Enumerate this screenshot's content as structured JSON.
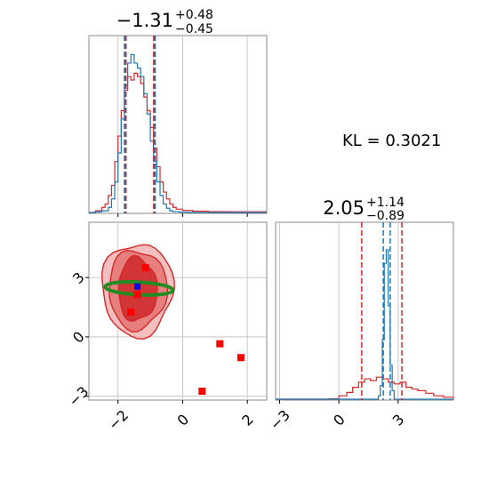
{
  "chart_data": {
    "type": "corner",
    "kl_annotation": "KL = 0.3021",
    "parameters": [
      {
        "title": "−1.31",
        "upper_err": "+0.48",
        "lower_err": "−0.45",
        "axis_range": [
          -2.9,
          2.6
        ],
        "ticks": [
          -2,
          0,
          2
        ],
        "tick_labels": [
          "−2",
          "0",
          "2"
        ],
        "quantile_lines_red": [
          -1.76,
          -0.89
        ],
        "quantile_lines_blue": [
          -1.8,
          -0.85
        ]
      },
      {
        "title": "2.05",
        "upper_err": "+1.14",
        "lower_err": "−0.89",
        "axis_range": [
          -3.2,
          5.8
        ],
        "ticks": [
          -3,
          0,
          3
        ],
        "tick_labels": [
          "−3",
          "0",
          "3"
        ],
        "quantile_lines_red": [
          1.16,
          3.19
        ],
        "quantile_lines_blue": [
          2.25,
          2.6
        ]
      }
    ],
    "histogram_1d_param1": {
      "blue": [
        [
          -2.9,
          0
        ],
        [
          -2.7,
          0.004
        ],
        [
          -2.5,
          0.01
        ],
        [
          -2.3,
          0.03
        ],
        [
          -2.2,
          0.08
        ],
        [
          -2.1,
          0.18
        ],
        [
          -2.0,
          0.35
        ],
        [
          -1.9,
          0.55
        ],
        [
          -1.8,
          0.75
        ],
        [
          -1.7,
          0.88
        ],
        [
          -1.6,
          0.93
        ],
        [
          -1.5,
          0.88
        ],
        [
          -1.4,
          0.85
        ],
        [
          -1.3,
          0.8
        ],
        [
          -1.2,
          0.7
        ],
        [
          -1.1,
          0.58
        ],
        [
          -1.0,
          0.42
        ],
        [
          -0.9,
          0.3
        ],
        [
          -0.8,
          0.18
        ],
        [
          -0.7,
          0.1
        ],
        [
          -0.6,
          0.05
        ],
        [
          -0.5,
          0.025
        ],
        [
          -0.4,
          0.01
        ],
        [
          -0.3,
          0.005
        ],
        [
          -0.1,
          0.002
        ],
        [
          0.2,
          0
        ],
        [
          2.6,
          0
        ]
      ],
      "red": [
        [
          -2.9,
          0
        ],
        [
          -2.7,
          0.01
        ],
        [
          -2.5,
          0.03
        ],
        [
          -2.4,
          0.05
        ],
        [
          -2.3,
          0.1
        ],
        [
          -2.2,
          0.16
        ],
        [
          -2.1,
          0.3
        ],
        [
          -2.0,
          0.45
        ],
        [
          -1.9,
          0.6
        ],
        [
          -1.8,
          0.72
        ],
        [
          -1.7,
          0.8
        ],
        [
          -1.6,
          0.78
        ],
        [
          -1.5,
          0.82
        ],
        [
          -1.4,
          0.8
        ],
        [
          -1.3,
          0.76
        ],
        [
          -1.2,
          0.68
        ],
        [
          -1.1,
          0.6
        ],
        [
          -1.0,
          0.5
        ],
        [
          -0.9,
          0.38
        ],
        [
          -0.8,
          0.27
        ],
        [
          -0.7,
          0.18
        ],
        [
          -0.6,
          0.12
        ],
        [
          -0.5,
          0.08
        ],
        [
          -0.4,
          0.05
        ],
        [
          -0.3,
          0.03
        ],
        [
          -0.2,
          0.02
        ],
        [
          0.0,
          0.012
        ],
        [
          0.3,
          0.008
        ],
        [
          0.8,
          0.005
        ],
        [
          1.5,
          0.004
        ],
        [
          2.6,
          0.004
        ]
      ]
    },
    "histogram_1d_param2": {
      "blue": [
        [
          -3.2,
          0
        ],
        [
          1.9,
          0
        ],
        [
          2.0,
          0.02
        ],
        [
          2.1,
          0.08
        ],
        [
          2.2,
          0.35
        ],
        [
          2.3,
          0.8
        ],
        [
          2.4,
          0.88
        ],
        [
          2.5,
          0.55
        ],
        [
          2.6,
          0.2
        ],
        [
          2.7,
          0.05
        ],
        [
          2.8,
          0
        ],
        [
          5.8,
          0
        ]
      ],
      "red": [
        [
          -3.2,
          0
        ],
        [
          -0.5,
          0.002
        ],
        [
          0.0,
          0.02
        ],
        [
          0.4,
          0.04
        ],
        [
          0.7,
          0.07
        ],
        [
          1.0,
          0.1
        ],
        [
          1.3,
          0.12
        ],
        [
          1.6,
          0.11
        ],
        [
          1.9,
          0.13
        ],
        [
          2.2,
          0.12
        ],
        [
          2.5,
          0.1
        ],
        [
          2.8,
          0.09
        ],
        [
          3.1,
          0.1
        ],
        [
          3.4,
          0.07
        ],
        [
          3.7,
          0.06
        ],
        [
          4.0,
          0.05
        ],
        [
          4.4,
          0.035
        ],
        [
          4.8,
          0.02
        ],
        [
          5.3,
          0.012
        ],
        [
          5.8,
          0.008
        ]
      ]
    },
    "scatter_2d": {
      "red_markers": [
        [
          -1.15,
          3.5
        ],
        [
          -1.4,
          2.15
        ],
        [
          -1.6,
          1.25
        ],
        [
          0.6,
          -2.75
        ],
        [
          1.15,
          -0.35
        ],
        [
          1.8,
          -1.05
        ]
      ],
      "blue_marker": [
        -1.4,
        2.55
      ],
      "contour_levels_red": [
        {
          "cx": -1.4,
          "cy": 2.4,
          "rx": 0.6,
          "ry": 1.6
        },
        {
          "cx": -1.4,
          "cy": 2.4,
          "rx": 0.9,
          "ry": 2.0
        },
        {
          "cx": -1.4,
          "cy": 2.4,
          "rx": 1.1,
          "ry": 2.35
        }
      ],
      "green_ellipse": {
        "cx": -1.35,
        "cy": 2.45,
        "rx": 1.05,
        "ry": 0.32,
        "angle_deg": 3
      }
    },
    "colors": {
      "blue": "#1f77b4",
      "red": "#d62728",
      "green": "#228b22",
      "contour_inner": "#cc2828",
      "contour_mid": "#e57373",
      "contour_outer": "#f5b4b4",
      "grid": "#c8c8c8"
    },
    "grid": true
  }
}
